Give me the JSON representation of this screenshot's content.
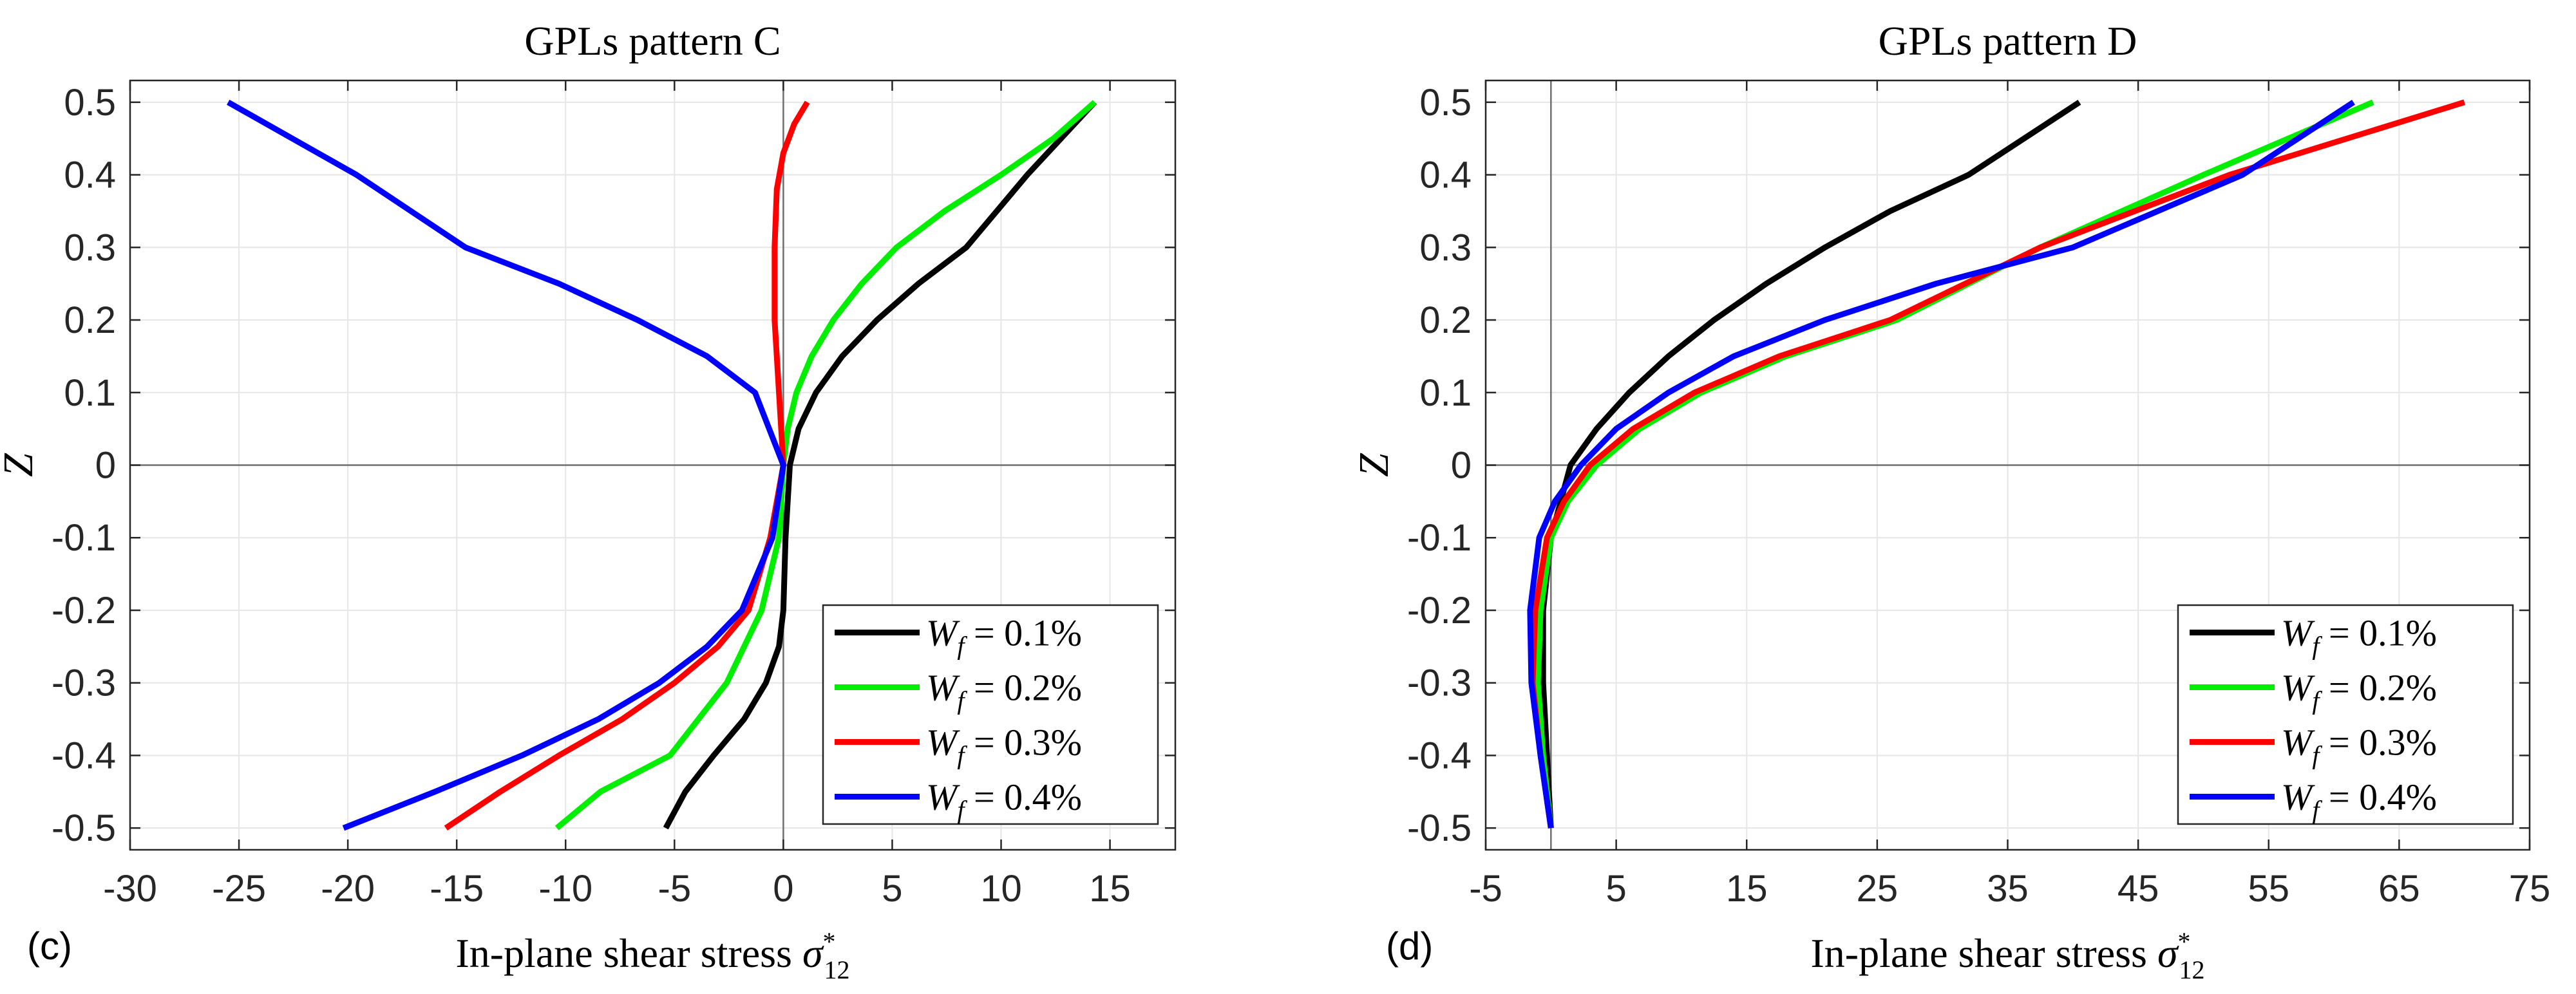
{
  "chart_data": [
    {
      "type": "line",
      "panel_label": "(c)",
      "title": "GPLs pattern C",
      "xlabel": "In-plane shear stress",
      "xlabel_symbol": "σ",
      "xlabel_sub": "12",
      "xlabel_sup": "*",
      "ylabel": "Z",
      "xlim": [
        -30,
        18
      ],
      "ylim": [
        -0.53,
        0.53
      ],
      "xticks": [
        -30,
        -25,
        -20,
        -15,
        -10,
        -5,
        0,
        5,
        10,
        15
      ],
      "xtick_labels": [
        "-30",
        "-25",
        "-20",
        "-15",
        "-10",
        "-5",
        "0",
        "5",
        "10",
        "15"
      ],
      "yticks": [
        -0.5,
        -0.4,
        -0.3,
        -0.2,
        -0.1,
        0,
        0.1,
        0.2,
        0.3,
        0.4,
        0.5
      ],
      "ytick_labels": [
        "-0.5",
        "-0.4",
        "-0.3",
        "-0.2",
        "-0.1",
        "0",
        "0.1",
        "0.2",
        "0.3",
        "0.4",
        "0.5"
      ],
      "grid": true,
      "legend_position": "bottom-right",
      "series": [
        {
          "name": "W_f = 0.1%",
          "legend_var": "W",
          "legend_sub": "f",
          "legend_value": " = 0.1%",
          "color": "#000000",
          "x": [
            -5.4,
            -4.5,
            -3.2,
            -1.8,
            -0.8,
            -0.2,
            0,
            0.1,
            0.3,
            0.7,
            1.5,
            2.7,
            4.3,
            6.2,
            8.4,
            11.2,
            14.3
          ],
          "z": [
            -0.5,
            -0.45,
            -0.4,
            -0.35,
            -0.3,
            -0.25,
            -0.2,
            -0.1,
            0,
            0.05,
            0.1,
            0.15,
            0.2,
            0.25,
            0.3,
            0.4,
            0.5
          ]
        },
        {
          "name": "W_f = 0.2%",
          "legend_var": "W",
          "legend_sub": "f",
          "legend_value": " = 0.2%",
          "color": "#00ee00",
          "x": [
            -10.4,
            -8.4,
            -5.2,
            -2.6,
            -1.0,
            -0.2,
            0,
            0.2,
            0.6,
            1.3,
            2.3,
            3.6,
            5.2,
            7.4,
            10.0,
            12.4,
            14.3
          ],
          "z": [
            -0.5,
            -0.45,
            -0.4,
            -0.3,
            -0.2,
            -0.1,
            0,
            0.05,
            0.1,
            0.15,
            0.2,
            0.25,
            0.3,
            0.35,
            0.4,
            0.45,
            0.5
          ]
        },
        {
          "name": "W_f = 0.3%",
          "legend_var": "W",
          "legend_sub": "f",
          "legend_value": " = 0.3%",
          "color": "#ff0000",
          "x": [
            -15.5,
            -13.0,
            -10.3,
            -7.4,
            -5.0,
            -3.0,
            -1.6,
            -0.6,
            0,
            -0.2,
            -0.4,
            -0.4,
            -0.3,
            0,
            0.5,
            1.1
          ],
          "z": [
            -0.5,
            -0.45,
            -0.4,
            -0.35,
            -0.3,
            -0.25,
            -0.2,
            -0.1,
            0,
            0.1,
            0.2,
            0.3,
            0.38,
            0.43,
            0.47,
            0.5
          ]
        },
        {
          "name": "W_f = 0.4%",
          "legend_var": "W",
          "legend_sub": "f",
          "legend_value": " = 0.4%",
          "color": "#0000ff",
          "x": [
            -20.2,
            -16.0,
            -12.0,
            -8.5,
            -5.7,
            -3.5,
            -1.9,
            -0.5,
            0,
            -1.3,
            -3.5,
            -6.7,
            -10.3,
            -14.6,
            -19.6,
            -25.5
          ],
          "z": [
            -0.5,
            -0.45,
            -0.4,
            -0.35,
            -0.3,
            -0.25,
            -0.2,
            -0.1,
            0,
            0.1,
            0.15,
            0.2,
            0.25,
            0.3,
            0.4,
            0.5
          ]
        }
      ]
    },
    {
      "type": "line",
      "panel_label": "(d)",
      "title": "GPLs pattern D",
      "xlabel": "In-plane shear stress",
      "xlabel_symbol": "σ",
      "xlabel_sub": "12",
      "xlabel_sup": "*",
      "ylabel": "Z",
      "xlim": [
        -5,
        75
      ],
      "ylim": [
        -0.53,
        0.53
      ],
      "xticks": [
        -5,
        5,
        15,
        25,
        35,
        45,
        55,
        65,
        75
      ],
      "xtick_labels": [
        "-5",
        "5",
        "15",
        "25",
        "35",
        "45",
        "55",
        "65",
        "75"
      ],
      "yticks": [
        -0.5,
        -0.4,
        -0.3,
        -0.2,
        -0.1,
        0,
        0.1,
        0.2,
        0.3,
        0.4,
        0.5
      ],
      "ytick_labels": [
        "-0.5",
        "-0.4",
        "-0.3",
        "-0.2",
        "-0.1",
        "0",
        "0.1",
        "0.2",
        "0.3",
        "0.4",
        "0.5"
      ],
      "grid": true,
      "legend_position": "bottom-right",
      "series": [
        {
          "name": "W_f = 0.1%",
          "legend_var": "W",
          "legend_sub": "f",
          "legend_value": " = 0.1%",
          "color": "#000000",
          "x": [
            0,
            -0.3,
            -0.6,
            -0.6,
            0,
            1.5,
            3.5,
            6.0,
            9.0,
            12.5,
            16.5,
            21.0,
            26.0,
            32.0,
            40.5
          ],
          "z": [
            -0.5,
            -0.4,
            -0.3,
            -0.2,
            -0.1,
            0,
            0.05,
            0.1,
            0.15,
            0.2,
            0.25,
            0.3,
            0.35,
            0.4,
            0.5
          ]
        },
        {
          "name": "W_f = 0.2%",
          "legend_var": "W",
          "legend_sub": "f",
          "legend_value": " = 0.2%",
          "color": "#00ee00",
          "x": [
            0,
            -0.6,
            -1.0,
            -0.8,
            0,
            1.3,
            3.5,
            6.8,
            11.5,
            18.0,
            26.5,
            37.5,
            50.0,
            63.0
          ],
          "z": [
            -0.5,
            -0.4,
            -0.3,
            -0.2,
            -0.1,
            -0.05,
            0,
            0.05,
            0.1,
            0.15,
            0.2,
            0.3,
            0.4,
            0.5
          ]
        },
        {
          "name": "W_f = 0.3%",
          "legend_var": "W",
          "legend_sub": "f",
          "legend_value": " = 0.3%",
          "color": "#ff0000",
          "x": [
            0,
            -0.8,
            -1.4,
            -1.2,
            -0.3,
            1.0,
            3.0,
            6.3,
            11.0,
            17.5,
            26.0,
            37.5,
            52.0,
            70.0
          ],
          "z": [
            -0.5,
            -0.4,
            -0.3,
            -0.2,
            -0.1,
            -0.05,
            0,
            0.05,
            0.1,
            0.15,
            0.2,
            0.3,
            0.4,
            0.5
          ]
        },
        {
          "name": "W_f = 0.4%",
          "legend_var": "W",
          "legend_sub": "f",
          "legend_value": " = 0.4%",
          "color": "#0000ff",
          "x": [
            0,
            -0.8,
            -1.5,
            -1.6,
            -0.9,
            0.3,
            2.3,
            5.0,
            9.0,
            14.0,
            21.0,
            29.5,
            40.0,
            53.0,
            61.5
          ],
          "z": [
            -0.5,
            -0.4,
            -0.3,
            -0.2,
            -0.1,
            -0.05,
            0,
            0.05,
            0.1,
            0.15,
            0.2,
            0.25,
            0.3,
            0.4,
            0.5
          ]
        }
      ]
    }
  ]
}
